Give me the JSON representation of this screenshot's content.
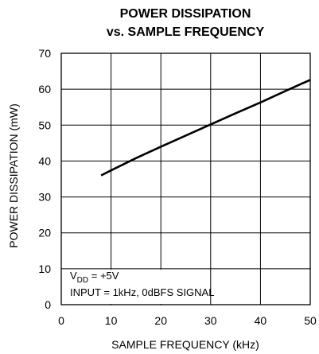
{
  "chart_data": {
    "type": "line",
    "title": "POWER DISSIPATION",
    "subtitle": "vs. SAMPLE FREQUENCY",
    "xlabel": "SAMPLE FREQUENCY (kHz)",
    "ylabel": "POWER DISSIPATION (mW)",
    "xlim": [
      0,
      50
    ],
    "ylim": [
      0,
      70
    ],
    "xticks": [
      "0",
      "10",
      "20",
      "30",
      "40",
      "50"
    ],
    "yticks": [
      "0",
      "10",
      "20",
      "30",
      "40",
      "50",
      "60",
      "70"
    ],
    "grid": true,
    "series": [
      {
        "x": [
          8,
          10,
          15,
          20,
          25,
          30,
          35,
          40,
          45,
          50
        ],
        "values": [
          36,
          37.4,
          40.8,
          44,
          47.1,
          50.2,
          53.3,
          56.3,
          59.5,
          62.6
        ]
      }
    ],
    "annotation": {
      "line1_main": "V",
      "line1_sub": "DD",
      "line1_rest": " = +5V",
      "line2": "INPUT = 1kHz, 0dBFS SIGNAL"
    },
    "colors": {
      "line": "#000000",
      "grid": "#000000"
    }
  }
}
